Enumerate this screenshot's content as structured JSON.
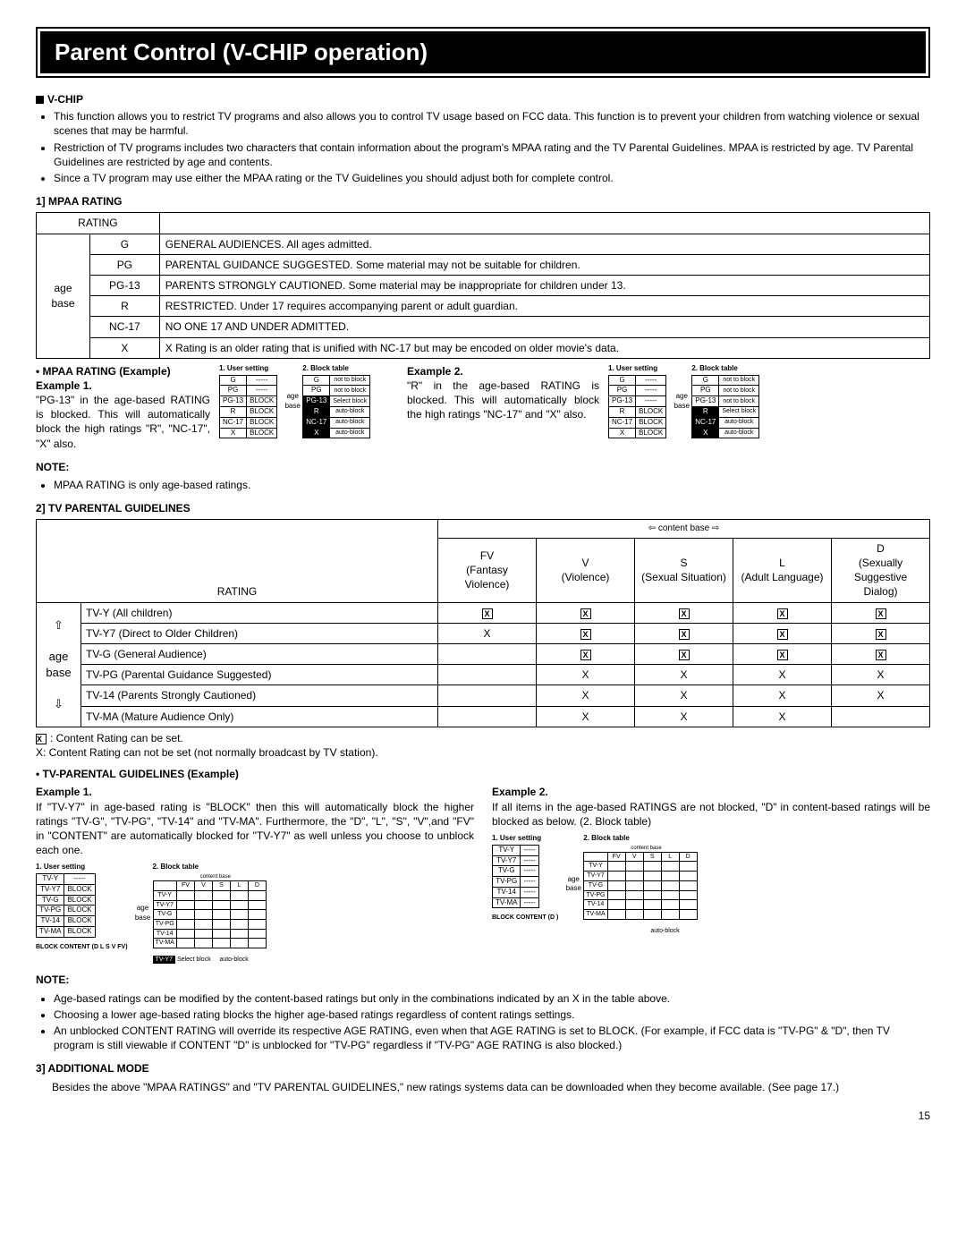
{
  "page_number": "15",
  "title": "Parent Control (V-CHIP operation)",
  "vchip": {
    "heading": "V-CHIP",
    "bullets": [
      "This function allows you to restrict TV programs and also allows you to control TV usage based on FCC data. This function is to prevent your children from watching violence or sexual scenes that may be harmful.",
      "Restriction of TV programs includes two characters that contain information about the program's MPAA rating and the TV Parental Guidelines. MPAA is restricted by age. TV Parental Guidelines are restricted by age and contents.",
      "Since a TV program may use either the MPAA rating or the TV Guidelines you should adjust both for complete control."
    ]
  },
  "mpaa_heading": "1] MPAA RATING",
  "mpaa_table": {
    "col0": "RATING",
    "age_label": "age base",
    "rows": [
      {
        "r": "G",
        "d": "GENERAL AUDIENCES. All ages admitted."
      },
      {
        "r": "PG",
        "d": "PARENTAL GUIDANCE SUGGESTED. Some material may not be suitable for children."
      },
      {
        "r": "PG-13",
        "d": "PARENTS STRONGLY CAUTIONED.  Some material may be inappropriate for children under 13."
      },
      {
        "r": "R",
        "d": "RESTRICTED. Under 17 requires accompanying parent or adult guardian."
      },
      {
        "r": "NC-17",
        "d": "NO ONE 17 AND UNDER ADMITTED."
      },
      {
        "r": "X",
        "d": "X Rating is an older rating that is unified with NC-17 but may be encoded on older movie's data."
      }
    ]
  },
  "mpaa_example": {
    "heading": "• MPAA RATING (Example)",
    "ex1_h": "Example 1.",
    "ex1_t": "\"PG-13\" in the age-based RATING is blocked. This will automatically block the high ratings \"R\", \"NC-17\", \"X\" also.",
    "ex2_h": "Example 2.",
    "ex2_t": "\"R\" in the age-based RATING is blocked. This will automatically block the high ratings \"NC-17\" and \"X\" also.",
    "us_h": "1. User setting",
    "bt_h": "2. Block table",
    "age_label": "age base",
    "us1": [
      [
        "G",
        "-----"
      ],
      [
        "PG",
        "-----"
      ],
      [
        "PG-13",
        "BLOCK"
      ],
      [
        "R",
        "BLOCK"
      ],
      [
        "NC-17",
        "BLOCK"
      ],
      [
        "X",
        "BLOCK"
      ]
    ],
    "bt1_rows": [
      [
        "G",
        "not to block",
        0
      ],
      [
        "PG",
        "not to block",
        0
      ],
      [
        "PG-13",
        "Select block",
        1
      ],
      [
        "R",
        "auto-block",
        1
      ],
      [
        "NC-17",
        "auto-block",
        1
      ],
      [
        "X",
        "auto-block",
        1
      ]
    ],
    "us2": [
      [
        "G",
        "-----"
      ],
      [
        "PG",
        "-----"
      ],
      [
        "PG-13",
        "-----"
      ],
      [
        "R",
        "BLOCK"
      ],
      [
        "NC-17",
        "BLOCK"
      ],
      [
        "X",
        "BLOCK"
      ]
    ],
    "bt2_rows": [
      [
        "G",
        "not to block",
        0
      ],
      [
        "PG",
        "not to block",
        0
      ],
      [
        "PG-13",
        "not to block",
        0
      ],
      [
        "R",
        "Select block",
        1
      ],
      [
        "NC-17",
        "auto-block",
        1
      ],
      [
        "X",
        "auto-block",
        1
      ]
    ]
  },
  "note_h": "NOTE:",
  "mpaa_note": "MPAA RATING is only age-based ratings.",
  "tv_heading": "2] TV PARENTAL GUIDELINES",
  "tv_table": {
    "content_hdr": "⇦ content base ⇨",
    "rating_h": "RATING",
    "age_label": "age base",
    "cols": [
      {
        "c": "FV",
        "d": "(Fantasy Violence)"
      },
      {
        "c": "V",
        "d": "(Violence)"
      },
      {
        "c": "S",
        "d": "(Sexual Situation)"
      },
      {
        "c": "L",
        "d": "(Adult Language)"
      },
      {
        "c": "D",
        "d": "(Sexually Suggestive Dialog)"
      }
    ],
    "rows": [
      {
        "r": "TV-Y (All children)",
        "v": [
          "b",
          "b",
          "b",
          "b",
          "b"
        ]
      },
      {
        "r": "TV-Y7 (Direct to Older Children)",
        "v": [
          "x",
          "b",
          "b",
          "b",
          "b"
        ]
      },
      {
        "r": "TV-G (General Audience)",
        "v": [
          "",
          "b",
          "b",
          "b",
          "b"
        ]
      },
      {
        "r": "TV-PG (Parental Guidance Suggested)",
        "v": [
          "",
          "x",
          "x",
          "x",
          "x"
        ]
      },
      {
        "r": "TV-14 (Parents Strongly Cautioned)",
        "v": [
          "",
          "x",
          "x",
          "x",
          "x"
        ]
      },
      {
        "r": "TV-MA (Mature Audience Only)",
        "v": [
          "",
          "x",
          "x",
          "x",
          ""
        ]
      }
    ]
  },
  "tv_legend": {
    "l1": ": Content Rating can be set.",
    "l2": "X:   Content Rating can not be set (not normally broadcast by TV station)."
  },
  "tv_example": {
    "heading": "• TV-PARENTAL GUIDELINES (Example)",
    "ex1_h": "Example 1.",
    "ex1_t": "If \"TV-Y7\" in age-based rating is \"BLOCK\" then this will automatically block the higher ratings \"TV-G\", \"TV-PG\", \"TV-14\" and \"TV-MA\". Furthermore, the \"D\", \"L\", \"S\", \"V\",and \"FV\" in \"CONTENT\" are automatically blocked for \"TV-Y7\" as well unless you choose to unblock each one.",
    "ex2_h": "Example 2.",
    "ex2_t": "If all items in the age-based RATINGS are not blocked, \"D\" in content-based ratings will be blocked as below. (2. Block table)",
    "us_h": "1. User setting",
    "bt_h": "2. Block table",
    "cb_h": "content base",
    "age_label": "age base",
    "cb_cols": [
      "FV",
      "V",
      "S",
      "L",
      "D"
    ],
    "us1_rows": [
      [
        "TV-Y",
        "-----"
      ],
      [
        "TV-Y7",
        "BLOCK"
      ],
      [
        "TV-G",
        "BLOCK"
      ],
      [
        "TV-PG",
        "BLOCK"
      ],
      [
        "TV-14",
        "BLOCK"
      ],
      [
        "TV-MA",
        "BLOCK"
      ]
    ],
    "us1_bc": "BLOCK CONTENT (D L S V FV)",
    "bt1_ratings": [
      "TV-Y",
      "TV-Y7",
      "TV-G",
      "TV-PG",
      "TV-14",
      "TV-MA"
    ],
    "bt1_sel": "TV-Y7",
    "bt1_sel_lbl": "Select block",
    "bt1_auto": "auto-block",
    "us2_rows": [
      [
        "TV-Y",
        "-----"
      ],
      [
        "TV-Y7",
        "-----"
      ],
      [
        "TV-G",
        "-----"
      ],
      [
        "TV-PG",
        "-----"
      ],
      [
        "TV-14",
        "-----"
      ],
      [
        "TV-MA",
        "-----"
      ]
    ],
    "us2_bc": "BLOCK CONTENT (D               )",
    "bt2_ratings": [
      "TV-Y",
      "TV-Y7",
      "TV-G",
      "TV-PG",
      "TV-14",
      "TV-MA"
    ],
    "bt2_auto": "auto-block"
  },
  "tv_notes": [
    "Age-based ratings can be modified by the content-based ratings but only in the combinations indicated by an X in the table above.",
    "Choosing a lower age-based rating blocks the higher age-based ratings regardless of content ratings settings.",
    "An unblocked CONTENT RATING will override its respective AGE RATING, even when that AGE RATING is set to BLOCK. (For example, if FCC data is \"TV-PG\" & \"D\", then TV program is still viewable if CONTENT \"D\" is unblocked for \"TV-PG\" regardless if \"TV-PG\" AGE RATING is also blocked.)"
  ],
  "add_heading": "3] ADDITIONAL MODE",
  "add_text": "Besides the above \"MPAA RATINGS\" and \"TV PARENTAL GUIDELINES,\" new ratings systems data can be downloaded when they become available. (See page 17.)"
}
